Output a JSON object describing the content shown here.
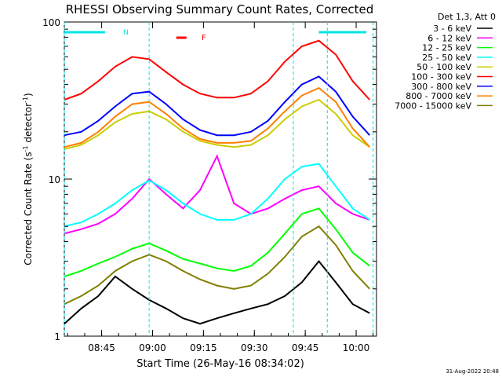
{
  "chart_data": {
    "type": "line",
    "title": "RHESSI Observing Summary Count Rates, Corrected",
    "xlabel": "Start Time (26-May-16 08:34:02)",
    "ylabel": "Corrected Count Rate (s⁻¹ detector⁻¹)",
    "ylabel_main": "Corrected Count Rate (s",
    "ylabel_mid": " detector",
    "ylabel_end": ")",
    "ylabel_sup": "-1",
    "x_units": "minutes since 08:34:02",
    "xlim": [
      0,
      92
    ],
    "ylim": [
      1,
      100
    ],
    "yscale": "log",
    "xticks": [
      {
        "value": 11,
        "label": "08:45"
      },
      {
        "value": 26,
        "label": "09:00"
      },
      {
        "value": 41,
        "label": "09:15"
      },
      {
        "value": 56,
        "label": "09:30"
      },
      {
        "value": 71,
        "label": "09:45"
      },
      {
        "value": 86,
        "label": "10:00"
      }
    ],
    "yticks": [
      {
        "value": 1,
        "label": "1"
      },
      {
        "value": 10,
        "label": "10"
      },
      {
        "value": 100,
        "label": "100"
      }
    ],
    "legend_title": "Det 1,3, Att 0",
    "legend_placement": "right",
    "series": [
      {
        "name": "3 - 6 keV",
        "color": "#000000",
        "x": [
          0,
          5,
          10,
          15,
          20,
          25,
          30,
          35,
          40,
          45,
          50,
          55,
          60,
          65,
          70,
          75,
          80,
          85,
          90
        ],
        "y": [
          1.2,
          1.5,
          1.8,
          2.4,
          2.0,
          1.7,
          1.5,
          1.3,
          1.2,
          1.3,
          1.4,
          1.5,
          1.6,
          1.8,
          2.2,
          3.0,
          2.2,
          1.6,
          1.4
        ]
      },
      {
        "name": "6 - 12 keV",
        "color": "#ff00ff",
        "x": [
          0,
          5,
          10,
          15,
          20,
          25,
          30,
          35,
          40,
          45,
          50,
          55,
          60,
          65,
          70,
          75,
          80,
          85,
          90
        ],
        "y": [
          4.5,
          4.8,
          5.2,
          6.0,
          7.5,
          10.0,
          8.0,
          6.5,
          8.5,
          14.0,
          7.0,
          6.0,
          6.5,
          7.5,
          8.5,
          9.0,
          7.0,
          6.0,
          5.5
        ]
      },
      {
        "name": "12 - 25 keV",
        "color": "#00ff00",
        "x": [
          0,
          5,
          10,
          15,
          20,
          25,
          30,
          35,
          40,
          45,
          50,
          55,
          60,
          65,
          70,
          75,
          80,
          85,
          90
        ],
        "y": [
          2.4,
          2.6,
          2.9,
          3.2,
          3.6,
          3.9,
          3.5,
          3.1,
          2.9,
          2.7,
          2.6,
          2.8,
          3.4,
          4.5,
          6.0,
          6.5,
          4.8,
          3.4,
          2.8
        ]
      },
      {
        "name": "25 - 50 keV",
        "color": "#00ffff",
        "x": [
          0,
          5,
          10,
          15,
          20,
          25,
          30,
          35,
          40,
          45,
          50,
          55,
          60,
          65,
          70,
          75,
          80,
          85,
          90
        ],
        "y": [
          5.0,
          5.3,
          6.0,
          7.0,
          8.5,
          9.8,
          8.5,
          7.0,
          6.0,
          5.5,
          5.5,
          6.0,
          7.5,
          10.0,
          12.0,
          12.5,
          9.0,
          6.5,
          5.5
        ]
      },
      {
        "name": "50 - 100 keV",
        "color": "#cccc00",
        "x": [
          0,
          5,
          10,
          15,
          20,
          25,
          30,
          35,
          40,
          45,
          50,
          55,
          60,
          65,
          70,
          75,
          80,
          85,
          90
        ],
        "y": [
          15.5,
          16.5,
          19.0,
          23.0,
          26.0,
          27.0,
          24.0,
          20.0,
          17.5,
          16.5,
          16.0,
          16.5,
          19.0,
          24.0,
          29.0,
          32.0,
          26.0,
          19.0,
          16.0
        ]
      },
      {
        "name": "100 - 300 keV",
        "color": "#ff0000",
        "x": [
          0,
          5,
          10,
          15,
          20,
          25,
          30,
          35,
          40,
          45,
          50,
          55,
          60,
          65,
          70,
          75,
          80,
          85,
          90
        ],
        "y": [
          32.0,
          35.0,
          42.0,
          52.0,
          60.0,
          58.0,
          48.0,
          40.0,
          35.0,
          33.0,
          33.0,
          35.0,
          42.0,
          56.0,
          70.0,
          76.0,
          62.0,
          42.0,
          32.0
        ]
      },
      {
        "name": "300 - 800 keV",
        "color": "#0000ff",
        "x": [
          0,
          5,
          10,
          15,
          20,
          25,
          30,
          35,
          40,
          45,
          50,
          55,
          60,
          65,
          70,
          75,
          80,
          85,
          90
        ],
        "y": [
          19.0,
          20.0,
          23.5,
          29.0,
          35.0,
          36.0,
          30.0,
          24.0,
          20.5,
          19.0,
          19.0,
          20.0,
          23.5,
          31.0,
          40.0,
          45.0,
          36.0,
          25.0,
          19.0
        ]
      },
      {
        "name": "800 - 7000 keV",
        "color": "#ff8000",
        "x": [
          0,
          5,
          10,
          15,
          20,
          25,
          30,
          35,
          40,
          45,
          50,
          55,
          60,
          65,
          70,
          75,
          80,
          85,
          90
        ],
        "y": [
          16.0,
          17.0,
          20.0,
          25.0,
          30.0,
          31.0,
          26.0,
          21.0,
          18.0,
          17.0,
          17.0,
          17.5,
          21.0,
          27.0,
          34.0,
          38.0,
          31.0,
          21.0,
          16.0
        ]
      },
      {
        "name": "7000 - 15000 keV",
        "color": "#808000",
        "x": [
          0,
          5,
          10,
          15,
          20,
          25,
          30,
          35,
          40,
          45,
          50,
          55,
          60,
          65,
          70,
          75,
          80,
          85,
          90
        ],
        "y": [
          1.6,
          1.8,
          2.1,
          2.6,
          3.0,
          3.3,
          3.0,
          2.6,
          2.3,
          2.1,
          2.0,
          2.1,
          2.5,
          3.2,
          4.3,
          5.0,
          3.8,
          2.6,
          2.0
        ]
      }
    ],
    "annotations": [
      {
        "text": "N",
        "color": "#00e5e5"
      },
      {
        "text": "F",
        "color": "#ff0000"
      }
    ],
    "markers": {
      "color": "#00e5e5",
      "vertical_dashed_at": [
        0,
        25,
        67.5,
        77.5,
        91
      ],
      "night_bars": [
        [
          0,
          12
        ],
        [
          75,
          89
        ]
      ],
      "flare_bar": [
        33,
        36
      ]
    },
    "timestamp": "31-Aug-2022 20:48"
  }
}
